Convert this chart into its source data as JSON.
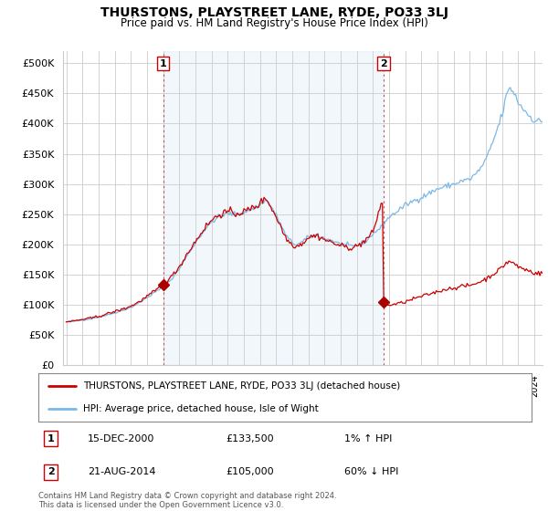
{
  "title": "THURSTONS, PLAYSTREET LANE, RYDE, PO33 3LJ",
  "subtitle": "Price paid vs. HM Land Registry's House Price Index (HPI)",
  "legend_line1": "THURSTONS, PLAYSTREET LANE, RYDE, PO33 3LJ (detached house)",
  "legend_line2": "HPI: Average price, detached house, Isle of Wight",
  "footnote": "Contains HM Land Registry data © Crown copyright and database right 2024.\nThis data is licensed under the Open Government Licence v3.0.",
  "annotation1_label": "1",
  "annotation1_date": "15-DEC-2000",
  "annotation1_price": "£133,500",
  "annotation1_hpi": "1% ↑ HPI",
  "annotation2_label": "2",
  "annotation2_date": "21-AUG-2014",
  "annotation2_price": "£105,000",
  "annotation2_hpi": "60% ↓ HPI",
  "hpi_color": "#7ab8e8",
  "price_color": "#cc0000",
  "marker_color": "#aa0000",
  "ann_line_color": "#cc4444",
  "shade_color": "#ddeeff",
  "ylim": [
    0,
    520000
  ],
  "yticks": [
    0,
    50000,
    100000,
    150000,
    200000,
    250000,
    300000,
    350000,
    400000,
    450000,
    500000
  ],
  "ann1_x": 2001.0,
  "ann2_x": 2014.65,
  "marker1_x": 2001.0,
  "marker1_y": 133500,
  "marker2_x": 2014.65,
  "marker2_y": 105000,
  "xmin": 1995,
  "xmax": 2025
}
